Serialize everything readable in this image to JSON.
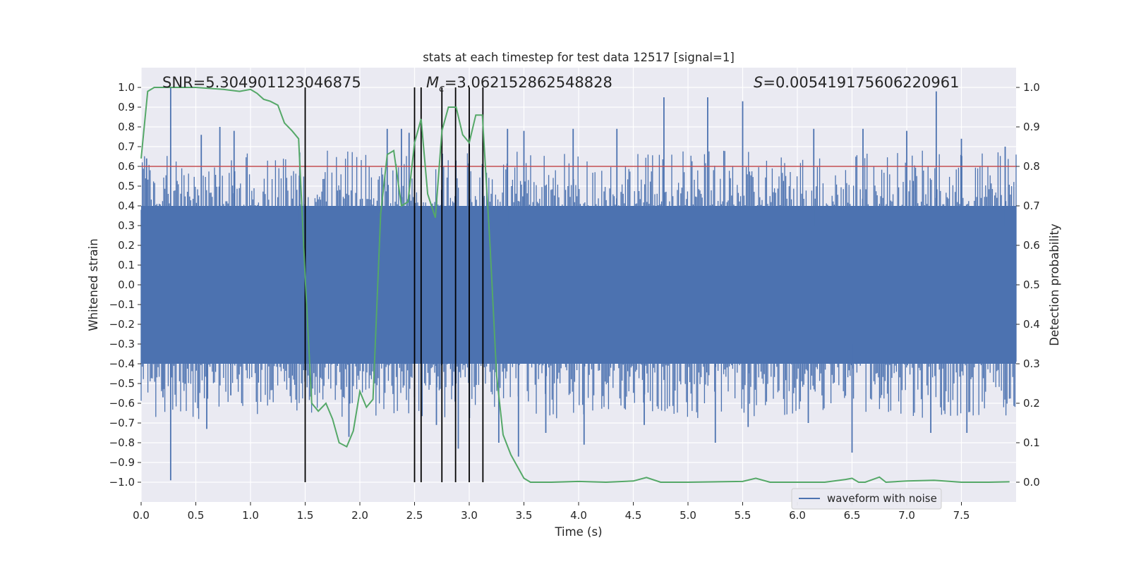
{
  "chart_data": {
    "type": "line",
    "title": "stats at each timestep for test data 12517 [signal=1]",
    "xlabel": "Time (s)",
    "ylabel_left": "Whitened strain",
    "ylabel_right": "Detection probability",
    "xlim": [
      0.0,
      8.0
    ],
    "ylim_left": [
      -1.1,
      1.1
    ],
    "ylim_right": [
      -0.05,
      1.05
    ],
    "x_ticks": [
      "0.0",
      "0.5",
      "1.0",
      "1.5",
      "2.0",
      "2.5",
      "3.0",
      "3.5",
      "4.0",
      "4.5",
      "5.0",
      "5.5",
      "6.0",
      "6.5",
      "7.0",
      "7.5"
    ],
    "x_tick_values": [
      0,
      0.5,
      1,
      1.5,
      2,
      2.5,
      3,
      3.5,
      4,
      4.5,
      5,
      5.5,
      6,
      6.5,
      7,
      7.5
    ],
    "y_left_ticks": [
      "1.0",
      "0.9",
      "0.8",
      "0.7",
      "0.6",
      "0.5",
      "0.4",
      "0.3",
      "0.2",
      "0.1",
      "0.0",
      "−0.1",
      "−0.2",
      "−0.3",
      "−0.4",
      "−0.5",
      "−0.6",
      "−0.7",
      "−0.8",
      "−0.9",
      "−1.0"
    ],
    "y_left_tick_values": [
      1.0,
      0.9,
      0.8,
      0.7,
      0.6,
      0.5,
      0.4,
      0.3,
      0.2,
      0.1,
      0.0,
      -0.1,
      -0.2,
      -0.3,
      -0.4,
      -0.5,
      -0.6,
      -0.7,
      -0.8,
      -0.9,
      -1.0
    ],
    "y_right_ticks": [
      "1.0",
      "0.9",
      "0.8",
      "0.7",
      "0.6",
      "0.5",
      "0.4",
      "0.3",
      "0.2",
      "0.1",
      "0.0"
    ],
    "y_right_tick_values": [
      1.0,
      0.9,
      0.8,
      0.7,
      0.6,
      0.5,
      0.4,
      0.3,
      0.2,
      0.1,
      0.0
    ],
    "annotations": {
      "snr": "SNR=5.304901123046875",
      "mc_symbol": "M",
      "mc_sub": "c",
      "mc_value": "=3.062152862548828",
      "s_symbol": "S",
      "s_value": "=0.005419175606220961"
    },
    "legend": {
      "label": "waveform with noise",
      "position": "lower-right"
    },
    "threshold": {
      "value": 0.8,
      "axis": "right",
      "color": "#c44e52"
    },
    "vertical_lines": [
      1.5,
      2.5,
      2.56,
      2.75,
      2.875,
      3.0,
      3.125
    ],
    "series": [
      {
        "name": "waveform with noise",
        "axis": "left",
        "color": "#4c72b0",
        "kind": "noise-envelope",
        "core_band": 0.4,
        "spikes_pos": [
          [
            0.27,
            1.0
          ],
          [
            0.05,
            0.64
          ],
          [
            0.55,
            0.76
          ],
          [
            0.72,
            0.8
          ],
          [
            0.85,
            0.78
          ],
          [
            1.45,
            0.67
          ],
          [
            2.25,
            0.79
          ],
          [
            2.38,
            0.79
          ],
          [
            2.45,
            0.77
          ],
          [
            3.0,
            0.79
          ],
          [
            3.35,
            0.79
          ],
          [
            3.5,
            0.78
          ],
          [
            3.95,
            0.79
          ],
          [
            4.35,
            0.79
          ],
          [
            4.78,
            0.95
          ],
          [
            5.18,
            0.95
          ],
          [
            5.5,
            0.93
          ],
          [
            6.15,
            0.79
          ],
          [
            6.6,
            0.79
          ],
          [
            7.0,
            0.78
          ],
          [
            7.27,
            0.98
          ],
          [
            7.5,
            0.74
          ],
          [
            7.9,
            0.7
          ]
        ],
        "spikes_neg": [
          [
            0.27,
            -0.99
          ],
          [
            0.2,
            -0.57
          ],
          [
            0.6,
            -0.73
          ],
          [
            0.82,
            -0.56
          ],
          [
            1.9,
            -0.77
          ],
          [
            2.7,
            -0.71
          ],
          [
            2.9,
            -0.83
          ],
          [
            3.27,
            -0.8
          ],
          [
            3.45,
            -0.87
          ],
          [
            3.7,
            -0.75
          ],
          [
            4.05,
            -0.81
          ],
          [
            4.6,
            -0.71
          ],
          [
            5.25,
            -0.8
          ],
          [
            5.55,
            -0.72
          ],
          [
            6.1,
            -0.7
          ],
          [
            6.5,
            -0.85
          ],
          [
            7.22,
            -0.75
          ],
          [
            7.55,
            -0.75
          ]
        ]
      },
      {
        "name": "detection probability",
        "axis": "right",
        "color": "#55a868",
        "x": [
          0.0,
          0.06,
          0.12,
          0.25,
          0.5,
          0.75,
          0.9,
          1.0,
          1.06,
          1.12,
          1.18,
          1.25,
          1.31,
          1.38,
          1.44,
          1.5,
          1.56,
          1.62,
          1.69,
          1.75,
          1.81,
          1.88,
          1.94,
          2.0,
          2.06,
          2.12,
          2.19,
          2.25,
          2.31,
          2.38,
          2.44,
          2.5,
          2.56,
          2.62,
          2.69,
          2.75,
          2.81,
          2.88,
          2.94,
          3.0,
          3.06,
          3.12,
          3.19,
          3.25,
          3.31,
          3.38,
          3.44,
          3.5,
          3.56,
          3.75,
          4.0,
          4.25,
          4.5,
          4.62,
          4.75,
          5.0,
          5.5,
          5.62,
          5.75,
          6.0,
          6.25,
          6.44,
          6.5,
          6.56,
          6.62,
          6.69,
          6.75,
          6.81,
          7.0,
          7.25,
          7.5,
          7.75,
          7.94
        ],
        "values": [
          0.82,
          0.99,
          1.0,
          1.0,
          1.0,
          0.995,
          0.99,
          0.995,
          0.985,
          0.97,
          0.965,
          0.955,
          0.91,
          0.89,
          0.87,
          0.52,
          0.2,
          0.18,
          0.2,
          0.16,
          0.1,
          0.09,
          0.13,
          0.23,
          0.19,
          0.21,
          0.68,
          0.83,
          0.84,
          0.7,
          0.71,
          0.86,
          0.92,
          0.73,
          0.67,
          0.89,
          0.95,
          0.95,
          0.88,
          0.86,
          0.93,
          0.93,
          0.6,
          0.27,
          0.12,
          0.07,
          0.04,
          0.01,
          0.0,
          0.0,
          0.002,
          0.0,
          0.003,
          0.012,
          0.0,
          0.0,
          0.002,
          0.01,
          0.0,
          0.0,
          0.0,
          0.007,
          0.01,
          0.0,
          0.0,
          0.007,
          0.013,
          0.0,
          0.003,
          0.005,
          0.0,
          0.0,
          0.001
        ]
      }
    ]
  }
}
